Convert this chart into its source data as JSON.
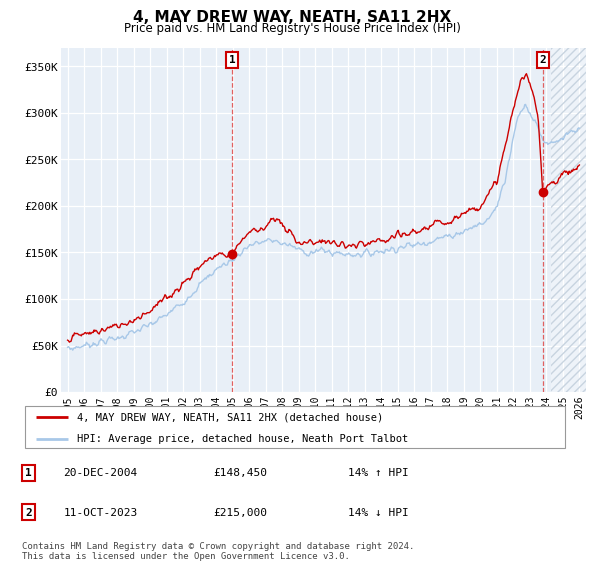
{
  "title": "4, MAY DREW WAY, NEATH, SA11 2HX",
  "subtitle": "Price paid vs. HM Land Registry's House Price Index (HPI)",
  "ylabel_ticks": [
    "£0",
    "£50K",
    "£100K",
    "£150K",
    "£200K",
    "£250K",
    "£300K",
    "£350K"
  ],
  "ytick_vals": [
    0,
    50000,
    100000,
    150000,
    200000,
    250000,
    300000,
    350000
  ],
  "ylim": [
    0,
    370000
  ],
  "xlim_start": 1994.6,
  "xlim_end": 2026.4,
  "hatch_start": 2024.3,
  "xtick_years": [
    1995,
    1996,
    1997,
    1998,
    1999,
    2000,
    2001,
    2002,
    2003,
    2004,
    2005,
    2006,
    2007,
    2008,
    2009,
    2010,
    2011,
    2012,
    2013,
    2014,
    2015,
    2016,
    2017,
    2018,
    2019,
    2020,
    2021,
    2022,
    2023,
    2024,
    2025,
    2026
  ],
  "hpi_color": "#a8c8e8",
  "price_color": "#cc0000",
  "vline_color": "#e06060",
  "marker1_x": 2004.97,
  "marker1_y": 148450,
  "marker2_x": 2023.79,
  "marker2_y": 215000,
  "legend_label1": "4, MAY DREW WAY, NEATH, SA11 2HX (detached house)",
  "legend_label2": "HPI: Average price, detached house, Neath Port Talbot",
  "table_row1": [
    "1",
    "20-DEC-2004",
    "£148,450",
    "14% ↑ HPI"
  ],
  "table_row2": [
    "2",
    "11-OCT-2023",
    "£215,000",
    "14% ↓ HPI"
  ],
  "footer": "Contains HM Land Registry data © Crown copyright and database right 2024.\nThis data is licensed under the Open Government Licence v3.0.",
  "bg_color": "#ffffff",
  "plot_bg_color": "#e8eff7",
  "grid_color": "#ffffff",
  "hatch_color": "#c8d4e0"
}
